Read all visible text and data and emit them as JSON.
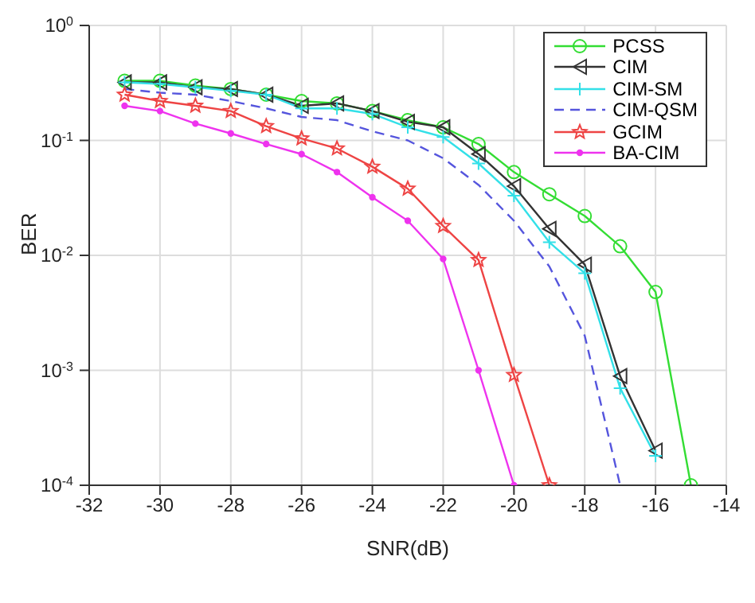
{
  "chart_data": {
    "type": "line",
    "xlabel": "SNR(dB)",
    "ylabel": "BER",
    "log": "y",
    "grid": true,
    "legend": "top right",
    "x": [
      -31,
      -30,
      -29,
      -28,
      -27,
      -26,
      -25,
      -24,
      -23,
      -22,
      -21,
      -20,
      -19,
      -18,
      -17,
      -16,
      -15
    ],
    "xlim": [
      -32,
      -14
    ],
    "xticks": [
      -32,
      -30,
      -28,
      -26,
      -24,
      -22,
      -20,
      -18,
      -16,
      -14
    ],
    "ylim": [
      0.0001,
      1
    ],
    "yticks": [
      {
        "value": 0.0001,
        "label": "10$^{-4}$"
      },
      {
        "value": 0.001,
        "label": "10$^{-3}$"
      },
      {
        "value": 0.01,
        "label": "10$^{-2}$"
      },
      {
        "value": 0.1,
        "label": "10$^{-1}$"
      },
      {
        "value": 1,
        "label": "10$^{0}$"
      }
    ],
    "series": [
      {
        "name": "PCSS",
        "color": "#33dd33",
        "marker": "circle",
        "line_style": "solid",
        "values": [
          0.33,
          0.33,
          0.3,
          0.28,
          0.25,
          0.22,
          0.21,
          0.18,
          0.15,
          0.13,
          0.093,
          0.053,
          0.034,
          0.022,
          0.012,
          0.0048,
          0.0001
        ]
      },
      {
        "name": "CIM",
        "color": "#333333",
        "marker": "triangle",
        "line_style": "solid",
        "values": [
          0.32,
          0.32,
          0.29,
          0.28,
          0.25,
          0.2,
          0.21,
          0.18,
          0.145,
          0.13,
          0.076,
          0.04,
          0.017,
          0.0083,
          0.00089,
          0.0002,
          null
        ]
      },
      {
        "name": "CIM-SM",
        "color": "#33e0e8",
        "marker": "cross",
        "line_style": "solid",
        "values": [
          0.32,
          0.31,
          0.29,
          0.27,
          0.25,
          0.19,
          0.19,
          0.17,
          0.13,
          0.107,
          0.063,
          0.033,
          0.013,
          0.007,
          0.0007,
          0.00018,
          null
        ]
      },
      {
        "name": "CIM-QSM",
        "color": "#5555dd",
        "marker": "none",
        "line_style": "dashed",
        "values": [
          0.28,
          0.26,
          0.25,
          0.22,
          0.19,
          0.16,
          0.15,
          0.12,
          0.1,
          0.07,
          0.041,
          0.02,
          0.008,
          0.002,
          0.0001,
          null,
          null
        ]
      },
      {
        "name": "GCIM",
        "color": "#ee4444",
        "marker": "star",
        "line_style": "solid",
        "values": [
          0.25,
          0.22,
          0.2,
          0.18,
          0.133,
          0.104,
          0.085,
          0.059,
          0.038,
          0.018,
          0.0091,
          0.00091,
          0.0001,
          null,
          null,
          null,
          null
        ]
      },
      {
        "name": "BA-CIM",
        "color": "#ee33ee",
        "marker": "circle",
        "line_style": "solid",
        "values": [
          0.2,
          0.18,
          0.14,
          0.115,
          0.093,
          0.076,
          0.053,
          0.032,
          0.02,
          0.0093,
          0.001,
          0.0001,
          null,
          null,
          null,
          null,
          null
        ]
      }
    ]
  }
}
